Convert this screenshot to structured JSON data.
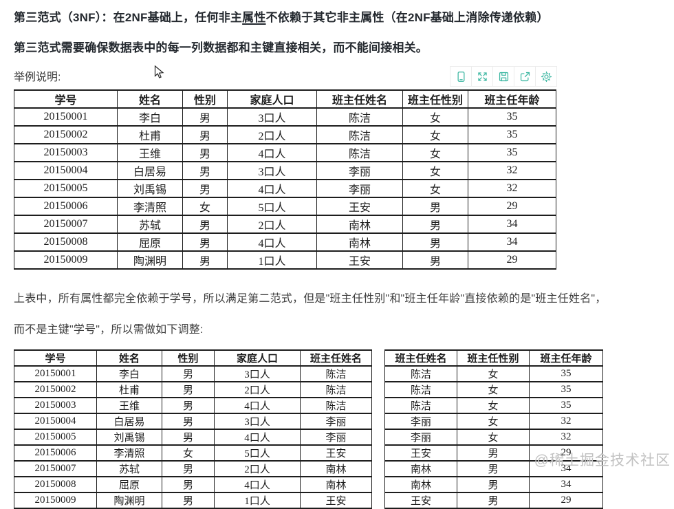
{
  "heading": {
    "line1_part1": "第三范式（3NF）：在2NF基础上，任何非主",
    "line1_underlined": "属性",
    "line1_part2": "不依赖于其它非主属性（在2NF基础上消除传递依赖）",
    "line2": "第三范式需要确保数据表中的每一列数据都和主键直接相关，而不能间接相关。"
  },
  "example_label": "举例说明:",
  "toolbar": {
    "accent_color": "#3fb8a3",
    "icons": [
      "device-icon",
      "expand-icon",
      "save-icon",
      "share-icon",
      "settings-icon"
    ]
  },
  "tables": {
    "students_full": {
      "headers": [
        "学号",
        "姓名",
        "性别",
        "家庭人口",
        "班主任姓名",
        "班主任性别",
        "班主任年龄"
      ],
      "rows": [
        [
          "20150001",
          "李白",
          "男",
          "3口人",
          "陈洁",
          "女",
          "35"
        ],
        [
          "20150002",
          "杜甫",
          "男",
          "2口人",
          "陈洁",
          "女",
          "35"
        ],
        [
          "20150003",
          "王维",
          "男",
          "4口人",
          "陈洁",
          "女",
          "35"
        ],
        [
          "20150004",
          "白居易",
          "男",
          "3口人",
          "李丽",
          "女",
          "32"
        ],
        [
          "20150005",
          "刘禹锡",
          "男",
          "4口人",
          "李丽",
          "女",
          "32"
        ],
        [
          "20150006",
          "李清照",
          "女",
          "5口人",
          "王安",
          "男",
          "29"
        ],
        [
          "20150007",
          "苏轼",
          "男",
          "2口人",
          "南林",
          "男",
          "34"
        ],
        [
          "20150008",
          "屈原",
          "男",
          "4口人",
          "南林",
          "男",
          "34"
        ],
        [
          "20150009",
          "陶渊明",
          "男",
          "1口人",
          "王安",
          "男",
          "29"
        ]
      ]
    },
    "students_split": {
      "headers": [
        "学号",
        "姓名",
        "性别",
        "家庭人口",
        "班主任姓名"
      ],
      "rows": [
        [
          "20150001",
          "李白",
          "男",
          "3口人",
          "陈洁"
        ],
        [
          "20150002",
          "杜甫",
          "男",
          "2口人",
          "陈洁"
        ],
        [
          "20150003",
          "王维",
          "男",
          "4口人",
          "陈洁"
        ],
        [
          "20150004",
          "白居易",
          "男",
          "3口人",
          "李丽"
        ],
        [
          "20150005",
          "刘禹锡",
          "男",
          "4口人",
          "李丽"
        ],
        [
          "20150006",
          "李清照",
          "女",
          "5口人",
          "王安"
        ],
        [
          "20150007",
          "苏轼",
          "男",
          "2口人",
          "南林"
        ],
        [
          "20150008",
          "屈原",
          "男",
          "4口人",
          "南林"
        ],
        [
          "20150009",
          "陶渊明",
          "男",
          "1口人",
          "王安"
        ]
      ]
    },
    "teachers_split": {
      "headers": [
        "班主任姓名",
        "班主任性别",
        "班主任年龄"
      ],
      "rows": [
        [
          "陈洁",
          "女",
          "35"
        ],
        [
          "陈洁",
          "女",
          "35"
        ],
        [
          "陈洁",
          "女",
          "35"
        ],
        [
          "李丽",
          "女",
          "32"
        ],
        [
          "李丽",
          "女",
          "32"
        ],
        [
          "王安",
          "男",
          "29"
        ],
        [
          "南林",
          "男",
          "34"
        ],
        [
          "南林",
          "男",
          "34"
        ],
        [
          "王安",
          "男",
          "29"
        ]
      ]
    }
  },
  "paragraph": {
    "line1": "上表中，所有属性都完全依赖于学号，所以满足第二范式，但是\"班主任性别\"和\"班主任年龄\"直接依赖的是\"班主任姓名\"，",
    "line2": "而不是主键\"学号\"，所以需做如下调整:"
  },
  "watermark": "@稀土掘金技术社区"
}
